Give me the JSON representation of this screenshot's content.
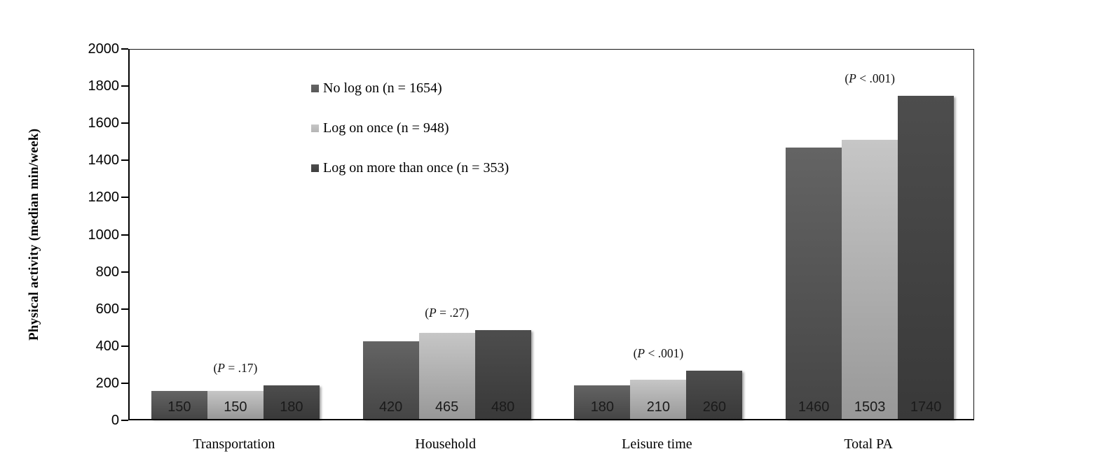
{
  "chart_data": {
    "type": "bar",
    "title": "",
    "ylabel": "Physical activity (median min/week)",
    "xlabel": "",
    "ylim": [
      0,
      2000
    ],
    "yticks": [
      0,
      200,
      400,
      600,
      800,
      1000,
      1200,
      1400,
      1600,
      1800,
      2000
    ],
    "grid": false,
    "legend_position": "upper-left-inside",
    "categories": [
      "Transportation",
      "Household",
      "Leisure time",
      "Total PA"
    ],
    "series": [
      {
        "name": "No log on (n = 1654)",
        "values": [
          150,
          420,
          180,
          1460
        ],
        "color_top": "#646464",
        "color_bottom": "#454545",
        "legend_color": "#595959"
      },
      {
        "name": "Log on once (n = 948)",
        "values": [
          150,
          465,
          210,
          1503
        ],
        "color_top": "#c6c6c6",
        "color_bottom": "#989898",
        "legend_color": "#b5b5b5"
      },
      {
        "name": "Log on more than once (n = 353)",
        "values": [
          180,
          480,
          260,
          1740
        ],
        "color_top": "#4d4d4d",
        "color_bottom": "#393939",
        "legend_color": "#3f3f3f"
      }
    ],
    "annotations": [
      {
        "category": "Transportation",
        "text": "(P = .17)"
      },
      {
        "category": "Household",
        "text": "(P = .27)"
      },
      {
        "category": "Leisure time",
        "text": "(P < .001)"
      },
      {
        "category": "Total PA",
        "text": "(P < .001)"
      }
    ],
    "bar_value_labels": [
      [
        "150",
        "420",
        "180",
        "1460"
      ],
      [
        "150",
        "465",
        "210",
        "1503"
      ],
      [
        "180",
        "480",
        "260",
        "1740"
      ]
    ]
  }
}
